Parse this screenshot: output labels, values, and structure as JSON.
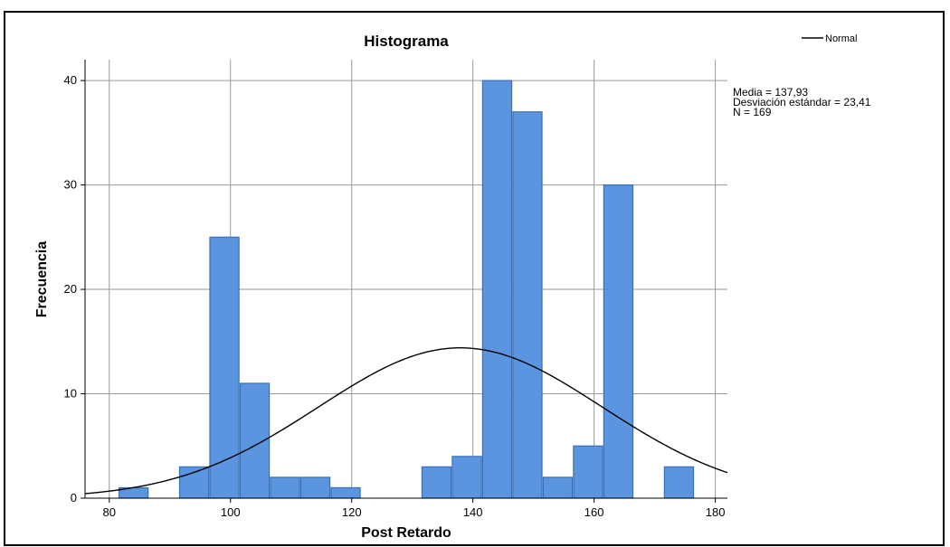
{
  "chart_data": {
    "type": "bar",
    "title": "Histograma",
    "xlabel": "Post Retardo",
    "ylabel": "Frecuencia",
    "xlim": [
      76,
      182
    ],
    "ylim": [
      0,
      42
    ],
    "x_ticks": [
      80,
      100,
      120,
      140,
      160,
      180
    ],
    "y_ticks": [
      0,
      10,
      20,
      30,
      40
    ],
    "bin_width": 4.8,
    "bins": [
      {
        "x": 84,
        "value": 1
      },
      {
        "x": 94,
        "value": 3
      },
      {
        "x": 99,
        "value": 25
      },
      {
        "x": 104,
        "value": 11
      },
      {
        "x": 109,
        "value": 2
      },
      {
        "x": 114,
        "value": 2
      },
      {
        "x": 119,
        "value": 1
      },
      {
        "x": 134,
        "value": 3
      },
      {
        "x": 139,
        "value": 4
      },
      {
        "x": 144,
        "value": 40
      },
      {
        "x": 149,
        "value": 37
      },
      {
        "x": 154,
        "value": 2
      },
      {
        "x": 159,
        "value": 5
      },
      {
        "x": 164,
        "value": 30
      },
      {
        "x": 174,
        "value": 3
      }
    ],
    "normal_curve": {
      "mean": 137.93,
      "sd": 23.41,
      "n": 169,
      "peak": 14.4
    },
    "legend": {
      "label": "Normal",
      "position": "top-right"
    },
    "stats": [
      "Media = 137,93",
      "Desviación estándar = 23,41",
      "N = 169"
    ],
    "grid": true,
    "bar_color": "#5b95e0",
    "bar_edge_color": "#3a6fb8"
  }
}
